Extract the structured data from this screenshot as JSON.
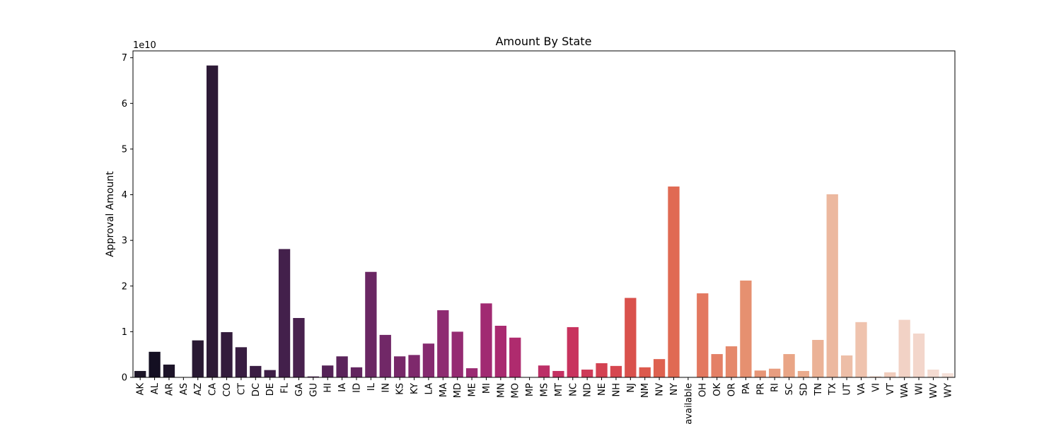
{
  "chart_data": {
    "type": "bar",
    "title": "Amount By State",
    "xlabel": "",
    "ylabel": "Approval Amount",
    "offset_label": "1e10",
    "ylim": [
      0,
      7.15
    ],
    "yticks": [
      0,
      1,
      2,
      3,
      4,
      5,
      6,
      7
    ],
    "grid": false,
    "categories": [
      "AK",
      "AL",
      "AR",
      "AS",
      "AZ",
      "CA",
      "CO",
      "CT",
      "DC",
      "DE",
      "FL",
      "GA",
      "GU",
      "HI",
      "IA",
      "ID",
      "IL",
      "IN",
      "KS",
      "KY",
      "LA",
      "MA",
      "MD",
      "ME",
      "MI",
      "MN",
      "MO",
      "MP",
      "MS",
      "MT",
      "NC",
      "ND",
      "NE",
      "NH",
      "NJ",
      "NM",
      "NV",
      "NY",
      "Not available",
      "OH",
      "OK",
      "OR",
      "PA",
      "PR",
      "RI",
      "SC",
      "SD",
      "TN",
      "TX",
      "UT",
      "VA",
      "VI",
      "VT",
      "WA",
      "WI",
      "WV",
      "WY"
    ],
    "values": [
      0.14,
      0.56,
      0.28,
      0.0,
      0.81,
      6.83,
      0.99,
      0.66,
      0.25,
      0.16,
      2.81,
      1.3,
      0.02,
      0.26,
      0.46,
      0.22,
      2.31,
      0.93,
      0.46,
      0.49,
      0.74,
      1.47,
      1.0,
      0.2,
      1.62,
      1.13,
      0.87,
      0.005,
      0.26,
      0.14,
      1.1,
      0.17,
      0.31,
      0.25,
      1.74,
      0.22,
      0.4,
      4.18,
      0.0,
      1.84,
      0.51,
      0.68,
      2.12,
      0.15,
      0.19,
      0.51,
      0.14,
      0.82,
      4.01,
      0.48,
      1.21,
      0.02,
      0.11,
      1.26,
      0.96,
      0.17,
      0.09
    ],
    "colors": [
      "#1c1527",
      "#140f22",
      "#1d1429",
      "#251730",
      "#291933",
      "#2d1a36",
      "#331c3c",
      "#381d41",
      "#3a1d43",
      "#3e1e46",
      "#43204b",
      "#48214e",
      "#4e2253",
      "#552357",
      "#5b245b",
      "#62255f",
      "#6a2763",
      "#712867",
      "#772869",
      "#7e296c",
      "#852a6f",
      "#8e2b71",
      "#952b72",
      "#9a2b72",
      "#a12a72",
      "#a92a70",
      "#af2b6e",
      "#b22d6c",
      "#bc2f67",
      "#c43162",
      "#c8335e",
      "#cd3a58",
      "#d34252",
      "#d6474f",
      "#d9514c",
      "#dc594c",
      "#de614f",
      "#e06a53",
      "#e27059",
      "#e37860",
      "#e48066",
      "#e5886b",
      "#e69070",
      "#e79677",
      "#e89d7f",
      "#e9a586",
      "#eaab8d",
      "#ebb296",
      "#ecb89f",
      "#edbea7",
      "#efc3ae",
      "#f0c8b6",
      "#f1cdbd",
      "#f2d2c5",
      "#f3d6cb",
      "#f4dbd1",
      "#f5e0d8"
    ]
  }
}
